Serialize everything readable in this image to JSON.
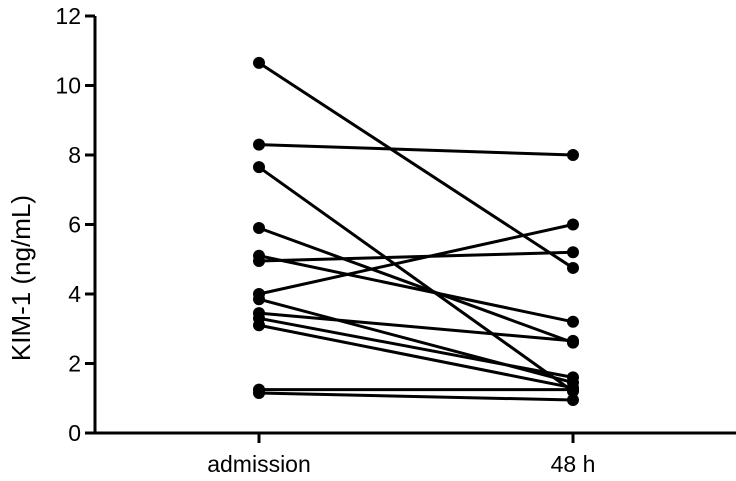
{
  "chart_data": {
    "type": "line",
    "title": "",
    "xlabel": "",
    "ylabel": "KIM-1 (ng/mL)",
    "categories": [
      "admission",
      "48 h"
    ],
    "ylim": [
      0,
      12
    ],
    "yticks": [
      0,
      2,
      4,
      6,
      8,
      10,
      12
    ],
    "grid": false,
    "legend": "none",
    "line_color": "#000000",
    "series": [
      {
        "values": [
          10.65,
          4.75
        ]
      },
      {
        "values": [
          8.3,
          8.0
        ]
      },
      {
        "values": [
          7.65,
          1.2
        ]
      },
      {
        "values": [
          5.9,
          2.6
        ]
      },
      {
        "values": [
          5.1,
          3.2
        ]
      },
      {
        "values": [
          4.95,
          5.2
        ]
      },
      {
        "values": [
          4.0,
          6.0
        ]
      },
      {
        "values": [
          3.85,
          1.45
        ]
      },
      {
        "values": [
          3.45,
          2.65
        ]
      },
      {
        "values": [
          3.3,
          1.6
        ]
      },
      {
        "values": [
          3.1,
          1.3
        ]
      },
      {
        "values": [
          1.25,
          1.25
        ]
      },
      {
        "values": [
          1.15,
          0.95
        ]
      }
    ]
  }
}
